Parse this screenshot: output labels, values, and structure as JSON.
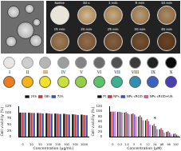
{
  "figure": {
    "photo_labels": [
      "Saline",
      "30 s",
      "1 min",
      "5 min",
      "10 min",
      "15 min",
      "20 min",
      "25 min",
      "30 min",
      "40 min"
    ],
    "numerals": [
      "I",
      "II",
      "III",
      "IV",
      "V",
      "VI",
      "VII",
      "VIII",
      "IX",
      "X"
    ]
  },
  "chart_data": [
    {
      "type": "bar",
      "categories": [
        "0",
        "10",
        "50",
        "100",
        "200",
        "300",
        "500",
        "1000"
      ],
      "x_label": "Concentration (μg/mL)",
      "y_label": "Cell viability (%)",
      "ylim": [
        0,
        125
      ],
      "yticks": [
        0,
        25,
        50,
        75,
        100,
        125
      ],
      "grid": false,
      "legend": "top",
      "series": [
        {
          "name": "24h",
          "color": "#111111",
          "values": [
            100,
            99,
            98,
            97,
            96,
            95,
            93,
            92
          ]
        },
        {
          "name": "48h",
          "color": "#e8302a",
          "values": [
            100,
            98,
            97,
            96,
            95,
            93,
            92,
            90
          ]
        },
        {
          "name": "72h",
          "color": "#2a55d6",
          "values": [
            100,
            98,
            96,
            95,
            94,
            92,
            90,
            88
          ]
        }
      ]
    },
    {
      "type": "bar",
      "categories": [
        "0",
        "0.3",
        "1.5",
        "3",
        "6",
        "12",
        "24",
        "48",
        "96",
        "192"
      ],
      "x_label": "Concentration (μM)",
      "y_label": "Cell viability (%)",
      "ylim": [
        0,
        120
      ],
      "yticks": [
        0,
        20,
        40,
        60,
        80,
        100,
        120
      ],
      "grid": false,
      "legend": "top",
      "annotations": [
        {
          "text": "*",
          "category": "24"
        }
      ],
      "series": [
        {
          "name": "Pt",
          "color": "#111111",
          "values": [
            100,
            98,
            95,
            90,
            80,
            65,
            45,
            30,
            20,
            12
          ]
        },
        {
          "name": "NPs",
          "color": "#e8302a",
          "values": [
            100,
            99,
            97,
            93,
            85,
            70,
            52,
            35,
            22,
            14
          ]
        },
        {
          "name": "NPs-cRGD",
          "color": "#2a55d6",
          "values": [
            100,
            97,
            93,
            88,
            78,
            62,
            42,
            28,
            18,
            10
          ]
        },
        {
          "name": "NPs-cRGD+US",
          "color": "#e85aa8",
          "values": [
            100,
            95,
            88,
            80,
            65,
            48,
            30,
            18,
            10,
            6
          ]
        }
      ]
    }
  ]
}
